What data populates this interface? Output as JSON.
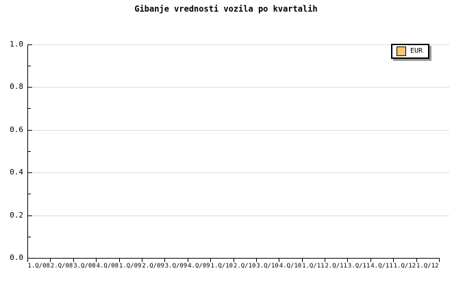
{
  "chart_data": {
    "type": "line",
    "title": "Gibanje vrednosti vozila po kvartalih",
    "categories": [
      "1.Q/08",
      "2.Q/08",
      "3.Q/08",
      "4.Q/08",
      "1.Q/09",
      "2.Q/09",
      "3.Q/09",
      "4.Q/09",
      "1.Q/10",
      "2.Q/10",
      "3.Q/10",
      "4.Q/10",
      "1.Q/11",
      "2.Q/11",
      "3.Q/11",
      "4.Q/11",
      "1.Q/12",
      "1.Q/12"
    ],
    "series": [
      {
        "name": "EUR",
        "color": "#FAC464",
        "values": []
      }
    ],
    "xlabel": "",
    "ylabel": "",
    "ylim": [
      0.0,
      1.0
    ],
    "ytick_labels": [
      "1.0",
      "0.8",
      "0.6",
      "0.4",
      "0.2",
      "0.0"
    ],
    "ytick_step": 0.2,
    "y_minor_step": 0.1,
    "grid": "horizontal-major",
    "legend_position": "top-right"
  },
  "legend": {
    "entries": [
      {
        "label": "EUR",
        "swatch_color": "#FAC464"
      }
    ]
  },
  "colors": {
    "background": "#FFFFFF",
    "axis": "#000000",
    "text": "#000000",
    "grid": "#DCDCDC",
    "legend_bg": "#FFFFFF",
    "legend_shadow": "#999999"
  }
}
